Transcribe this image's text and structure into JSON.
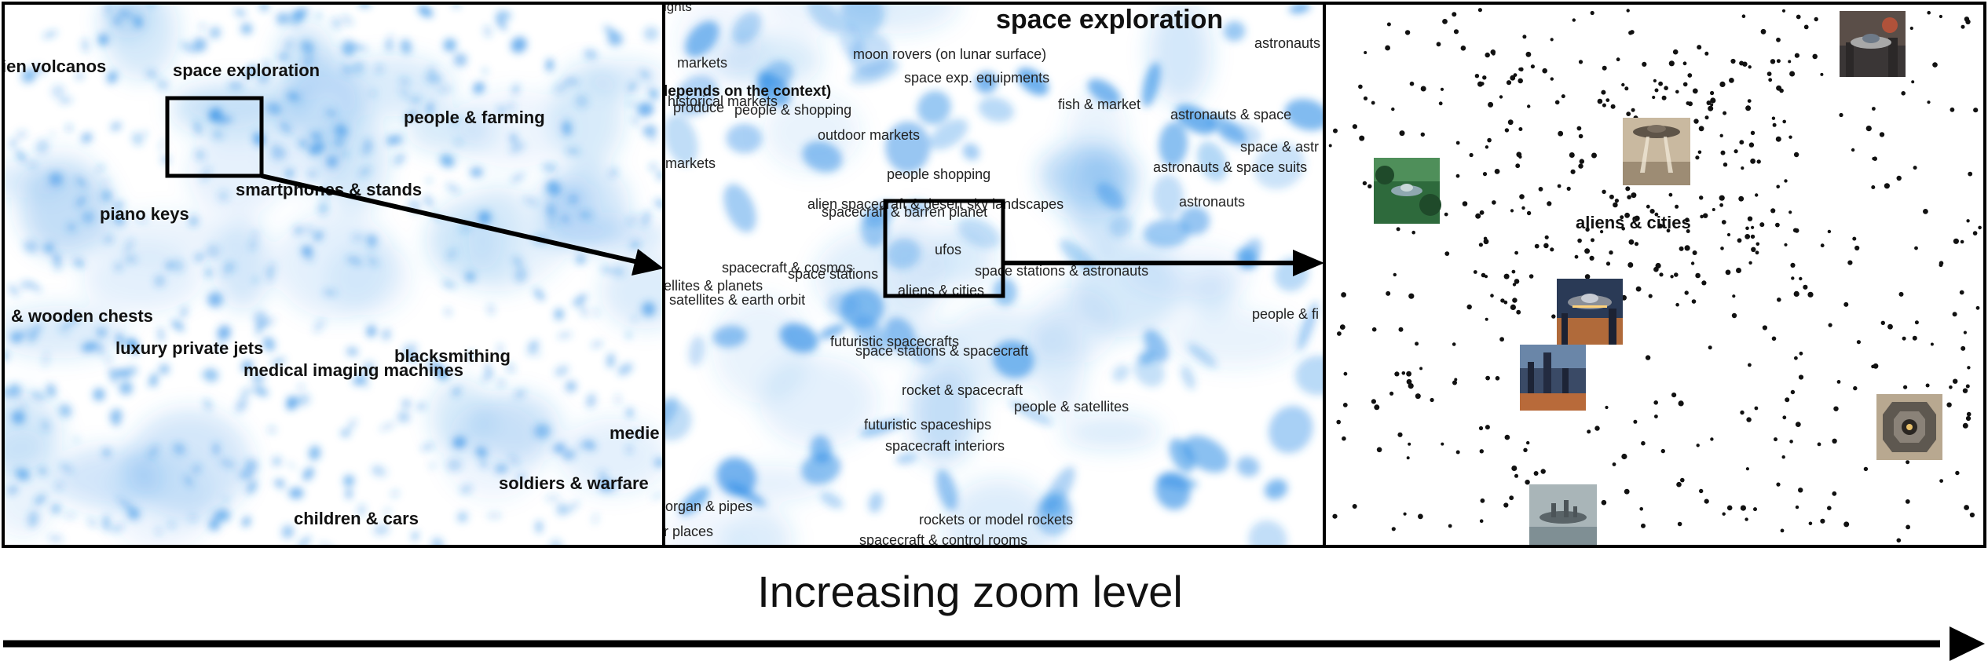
{
  "colors": {
    "blob": "#2f8ee6",
    "frame": "#000000",
    "point": "#111111",
    "text": "#111111"
  },
  "panels": [
    {
      "labels": [
        "ien volcanos",
        "space exploration",
        "people & farming",
        "piano keys",
        "smartphones & stands",
        "& wooden chests",
        "luxury private jets",
        "medical imaging machines",
        "blacksmithing",
        "medie",
        "soldiers & warfare",
        "children & cars"
      ]
    },
    {
      "title": "space exploration",
      "labels": [
        "ights",
        "moon rovers (on lunar surface)",
        "astronauts",
        "markets",
        "space exp. equipments",
        "kets, depends on the context)",
        "historical markets",
        "produce",
        "people & shopping",
        "fish & market",
        "astronauts & space",
        "outdoor markets",
        "space & astr",
        "markets",
        "astronauts & space suits",
        "people shopping",
        "alien spacecraft & desert sky landscapes",
        "spacecraft & barren planet",
        "astronauts",
        "ufos",
        "spacecraft & cosmos",
        "space stations",
        "space stations & astronauts",
        "ellites & planets",
        "aliens & cities",
        "satellites & earth orbit",
        "people & fi",
        "futuristic spacecrafts",
        "space stations & spacecraft",
        "rocket & spacecraft",
        "people & satellites",
        "futuristic spaceships",
        "spacecraft interiors",
        "organ & pipes",
        "r places",
        "rockets or model rockets",
        "spacecraft & control rooms"
      ]
    },
    {
      "cluster_label": "aliens & cities",
      "thumbnails": [
        "ufo-city-image",
        "ufo-jungle-image",
        "ufo-plaza-image",
        "ufo-city-night-image",
        "city-towers-image",
        "floating-island-image",
        "spaceship-corridor-image"
      ]
    }
  ],
  "axis_label": "Increasing zoom level"
}
